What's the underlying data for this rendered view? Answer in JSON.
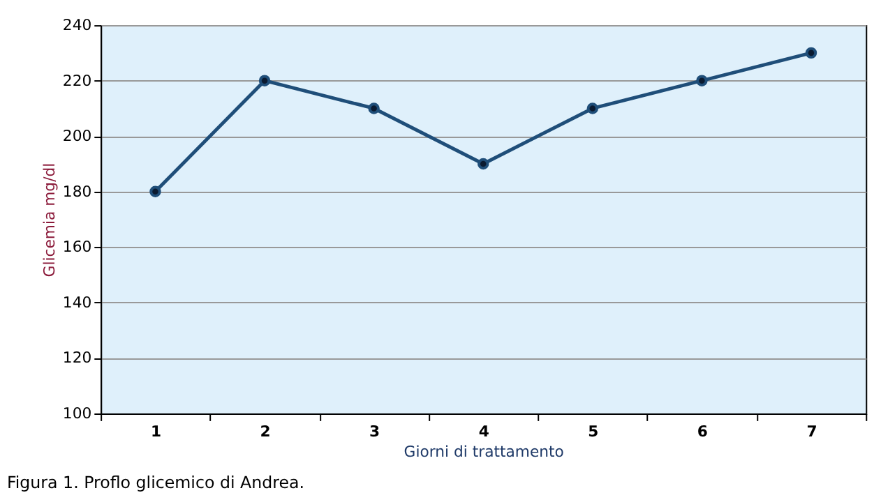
{
  "chart_data": {
    "type": "line",
    "xlabel": "Giorni di trattamento",
    "ylabel": "Glicemia mg/dl",
    "categories": [
      "1",
      "2",
      "3",
      "4",
      "5",
      "6",
      "7"
    ],
    "series": [
      {
        "color": "#1f4e79",
        "values": [
          180,
          220,
          210,
          190,
          210,
          220,
          230
        ]
      }
    ],
    "ylim": [
      100,
      240
    ],
    "yticks": [
      100,
      120,
      140,
      160,
      180,
      200,
      220,
      240
    ],
    "grid": "y",
    "marker": "circle",
    "line_style": "solid",
    "annotations": [
      "Figura 1.  Proflo glicemico di Andrea."
    ]
  }
}
